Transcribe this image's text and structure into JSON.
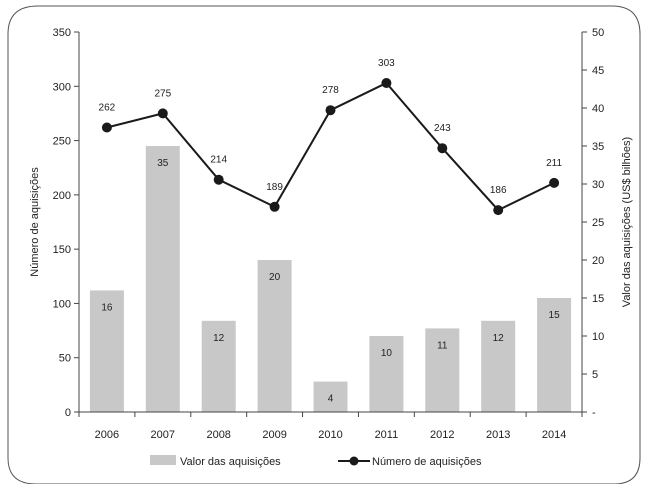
{
  "chart_data": {
    "type": "bar",
    "categories": [
      "2006",
      "2007",
      "2008",
      "2009",
      "2010",
      "2011",
      "2012",
      "2013",
      "2014"
    ],
    "series": [
      {
        "name": "Valor das aquisições",
        "type": "bar",
        "axis": "right",
        "values": [
          16,
          35,
          12,
          20,
          4,
          10,
          11,
          12,
          15
        ],
        "color": "#c8c8c8"
      },
      {
        "name": "Número de aquisições",
        "type": "line",
        "axis": "left",
        "values": [
          262,
          275,
          214,
          189,
          278,
          303,
          243,
          186,
          211
        ],
        "color": "#1a1a1a"
      }
    ],
    "ylabel_left": "Número de aquisições",
    "ylabel_right": "Valor das aquisições (US$ bilhões)",
    "ylim_left": [
      0,
      350
    ],
    "yticks_left": [
      "0",
      "50",
      "100",
      "150",
      "200",
      "250",
      "300",
      "350"
    ],
    "ylim_right": [
      0,
      50
    ],
    "yticks_right": [
      "-",
      "5",
      "10",
      "15",
      "20",
      "25",
      "30",
      "35",
      "40",
      "45",
      "50"
    ],
    "grid": false,
    "legend_position": "bottom"
  }
}
